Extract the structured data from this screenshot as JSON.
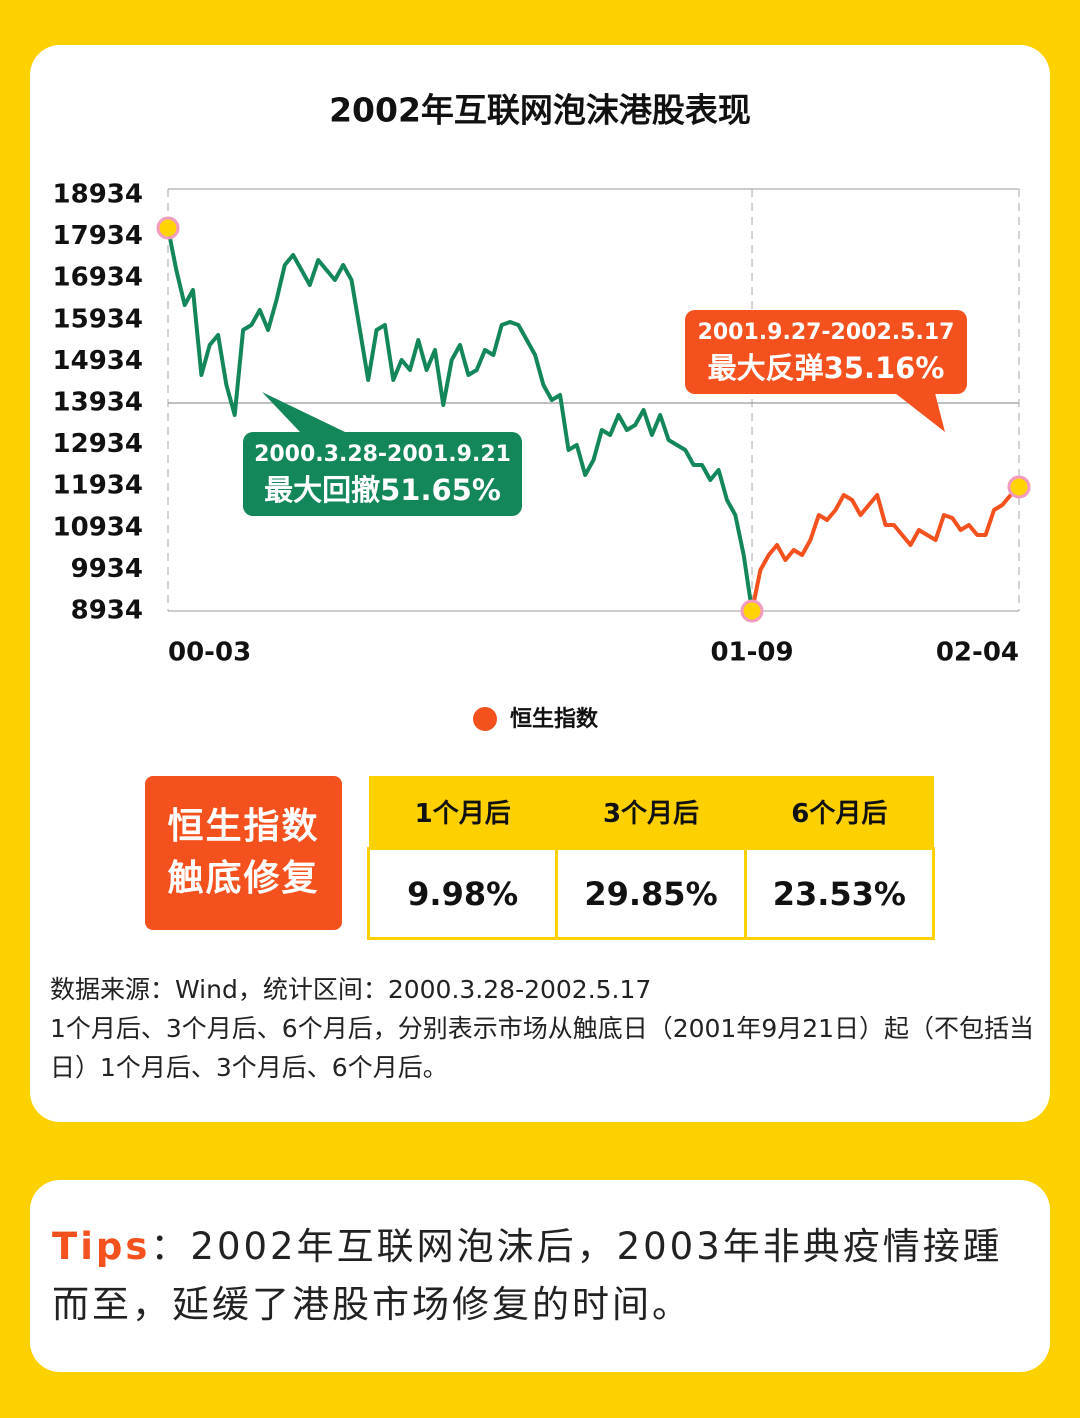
{
  "chart_data": {
    "type": "line",
    "title": "2002年互联网泡沫港股表现",
    "categories": [
      "00-03",
      null,
      null,
      null,
      null,
      null,
      null,
      null,
      null,
      null,
      null,
      null,
      null,
      null,
      null,
      null,
      null,
      null,
      null,
      null,
      null,
      null,
      null,
      null,
      null,
      null,
      null,
      null,
      null,
      null,
      null,
      null,
      null,
      null,
      null,
      null,
      null,
      null,
      null,
      null,
      null,
      null,
      null,
      null,
      null,
      null,
      null,
      null,
      null,
      null,
      null,
      null,
      null,
      null,
      null,
      null,
      null,
      null,
      null,
      null,
      null,
      null,
      null,
      null,
      null,
      null,
      null,
      null,
      null,
      null,
      "01-09",
      null,
      null,
      null,
      null,
      null,
      null,
      null,
      null,
      null,
      null,
      null,
      null,
      null,
      null,
      null,
      null,
      null,
      null,
      null,
      null,
      null,
      null,
      null,
      null,
      null,
      null,
      null,
      null,
      null,
      null,
      null,
      "02-04"
    ],
    "series": [
      {
        "color": "#13875a",
        "values": [
          18141,
          17132,
          16290,
          16651,
          14607,
          15329,
          15569,
          14367,
          13646,
          15689,
          15809,
          16170,
          15689,
          16410,
          17252,
          17492,
          17132,
          16771,
          17372,
          17132,
          16891,
          17252,
          16891,
          15689,
          14487,
          15689,
          15809,
          14487,
          14968,
          14728,
          15449,
          14728,
          15208,
          13886,
          14968,
          15329,
          14607,
          14728,
          15208,
          15088,
          15809,
          15882,
          15809,
          15449,
          15088,
          14367,
          14006,
          14127,
          12804,
          12925,
          12203,
          12564,
          13285,
          13165,
          13646,
          13285,
          13405,
          13766,
          13165,
          13646,
          13045,
          12925,
          12804,
          12444,
          12444,
          12083,
          12324,
          11602,
          11242,
          10280,
          8934,
          null,
          null,
          null,
          null,
          null,
          null,
          null,
          null,
          null,
          null,
          null,
          null,
          null,
          null,
          null,
          null,
          null,
          null,
          null,
          null,
          null,
          null,
          null,
          null,
          null,
          null,
          null,
          null,
          null,
          null,
          null,
          null
        ]
      },
      {
        "name": "恒生指数",
        "color": "#f4511e",
        "values": [
          null,
          null,
          null,
          null,
          null,
          null,
          null,
          null,
          null,
          null,
          null,
          null,
          null,
          null,
          null,
          null,
          null,
          null,
          null,
          null,
          null,
          null,
          null,
          null,
          null,
          null,
          null,
          null,
          null,
          null,
          null,
          null,
          null,
          null,
          null,
          null,
          null,
          null,
          null,
          null,
          null,
          null,
          null,
          null,
          null,
          null,
          null,
          null,
          null,
          null,
          null,
          null,
          null,
          null,
          null,
          null,
          null,
          null,
          null,
          null,
          null,
          null,
          null,
          null,
          null,
          null,
          null,
          null,
          null,
          null,
          8934,
          9920,
          10280,
          10521,
          10160,
          10401,
          10280,
          10641,
          11242,
          11122,
          11362,
          11723,
          11602,
          11242,
          11482,
          11723,
          11001,
          11001,
          10761,
          10521,
          10881,
          10761,
          10641,
          11242,
          11170,
          10881,
          11001,
          10761,
          10761,
          11362,
          11482,
          11723,
          11915
        ]
      }
    ],
    "ylim": [
      8934,
      18934
    ],
    "yticks": [
      8934,
      9934,
      10934,
      11934,
      12934,
      13934,
      14934,
      15934,
      16934,
      17934,
      18934
    ],
    "reference_line": 13934,
    "annotations": [
      {
        "range": "2000.3.28-2001.9.21",
        "text": "最大回撤51.65%",
        "color": "#13875a"
      },
      {
        "range": "2001.9.27-2002.5.17",
        "text": "最大反弹35.16%",
        "color": "#f4511e"
      }
    ]
  },
  "summary": {
    "label": [
      "恒生指数",
      "触底修复"
    ],
    "headers": [
      "1个月后",
      "3个月后",
      "6个月后"
    ],
    "values": [
      "9.98%",
      "29.85%",
      "23.53%"
    ]
  },
  "note": [
    "数据来源：Wind，统计区间：2000.3.28-2002.5.17",
    "1个月后、3个月后、6个月后，分别表示市场从触底日（2001年9月21日）起（不包括当日）1个月后、3个月后、6个月后。"
  ],
  "tips": {
    "label": "Tips",
    "text": "：2002年互联网泡沫后，2003年非典疫情接踵而至，延缓了港股市场修复的时间。"
  }
}
